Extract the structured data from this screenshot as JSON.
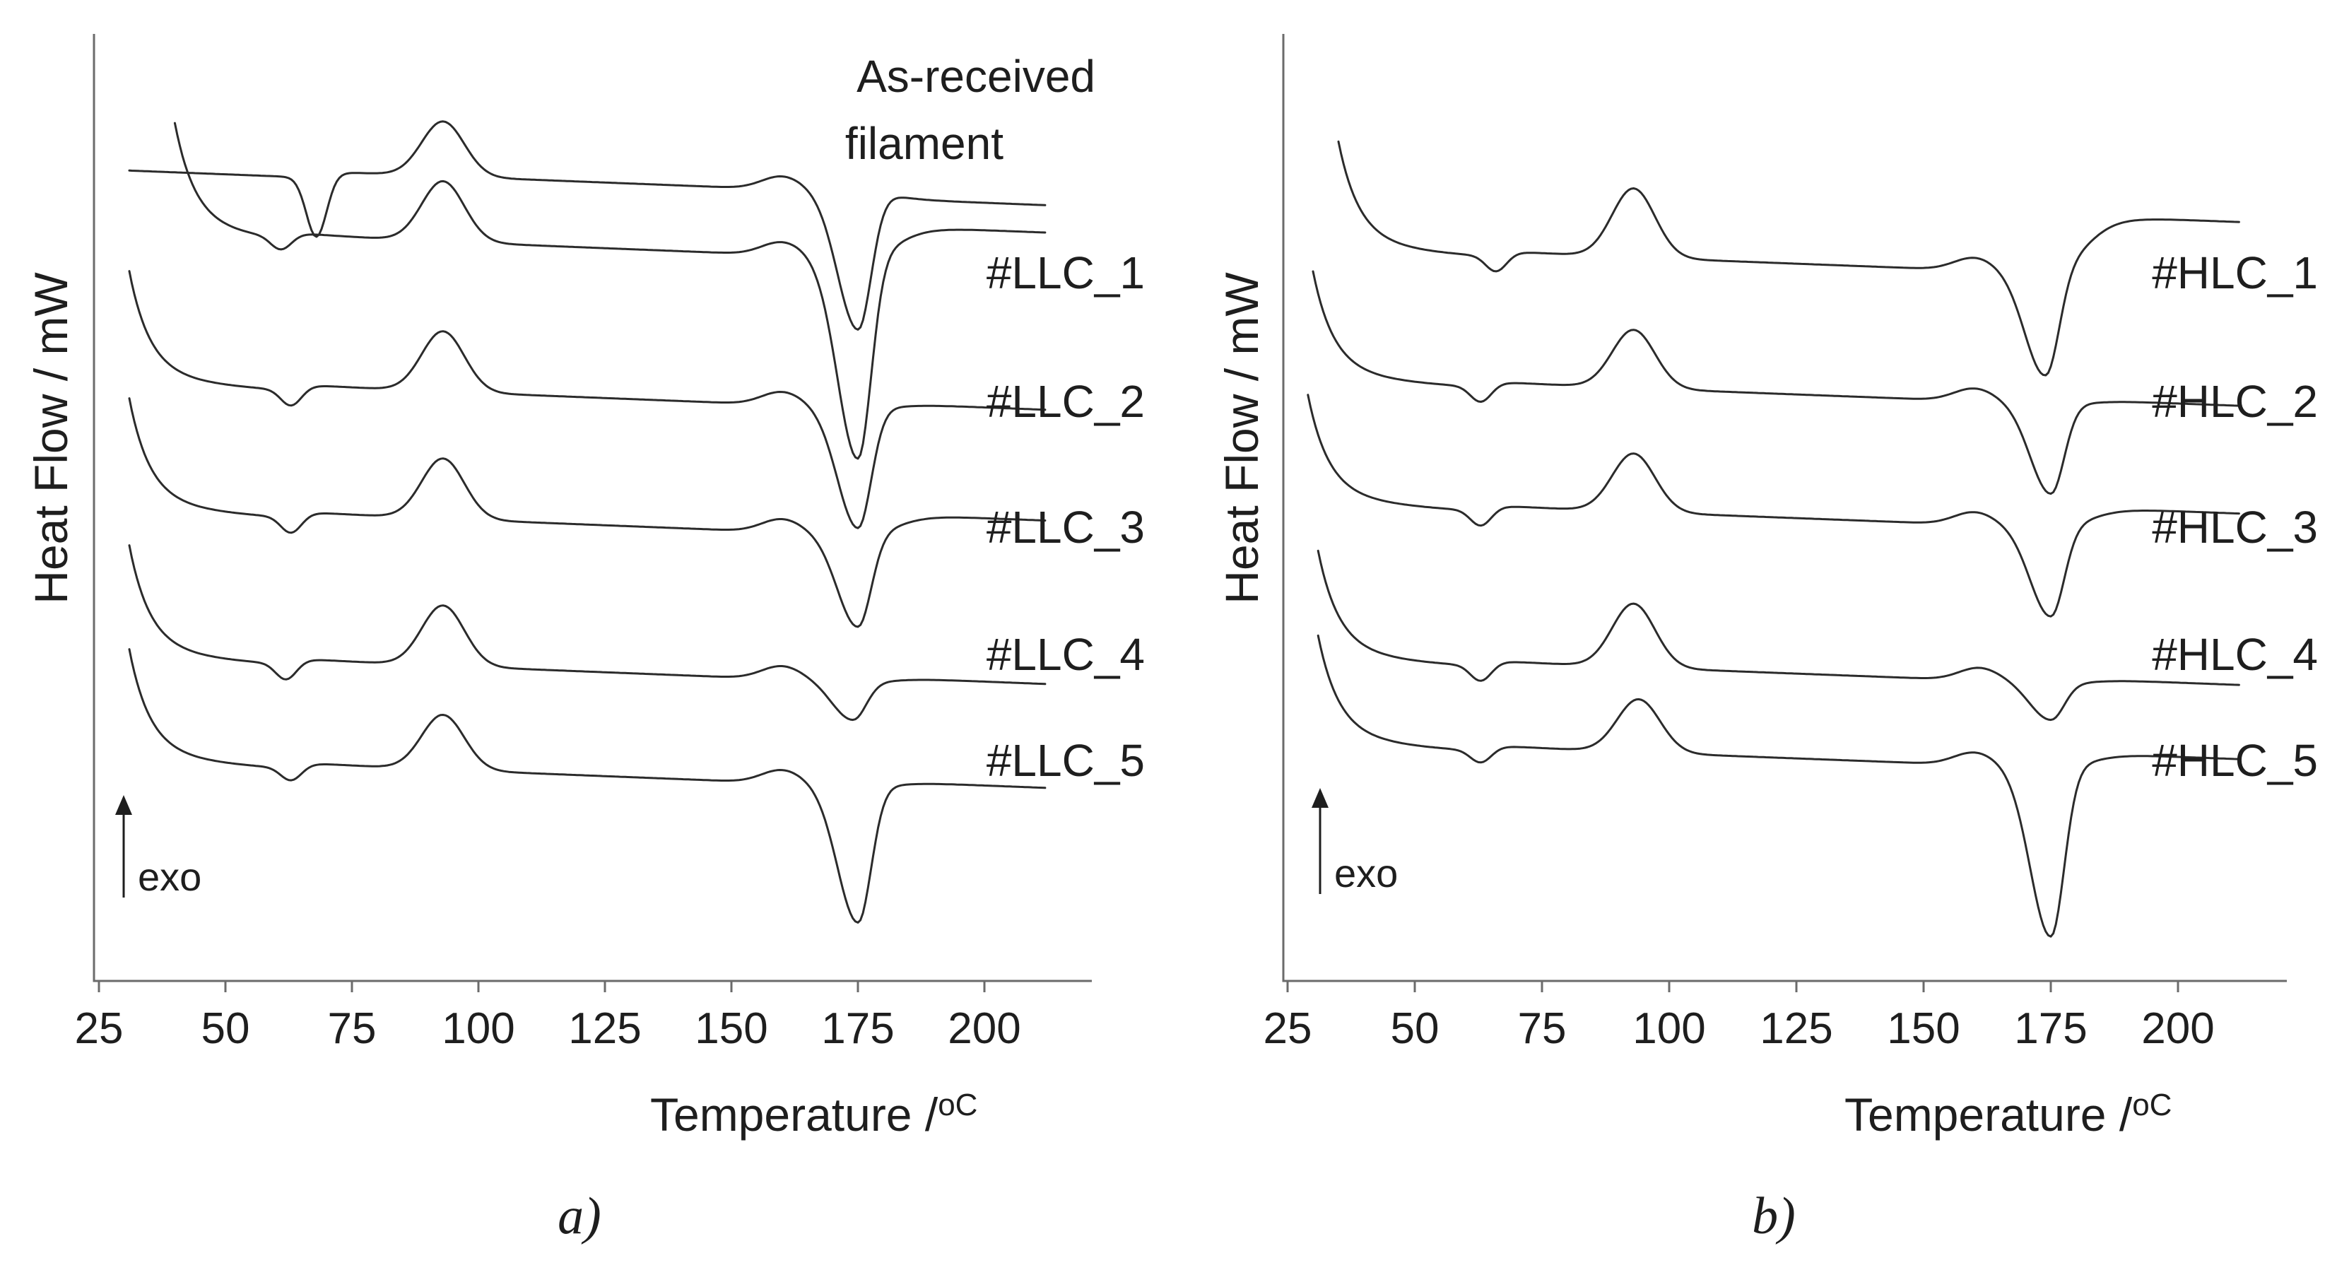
{
  "chart_data": [
    {
      "panel": "a)",
      "type": "line",
      "xlabel": "Temperature /",
      "xlabel_unit": "oC",
      "ylabel": "Heat Flow / mW",
      "xlim": [
        25,
        220
      ],
      "xticks": [
        25,
        50,
        75,
        100,
        125,
        150,
        175,
        200
      ],
      "annotation": "exo",
      "series_color": "#2b2b2b",
      "highlight_color": "#1a9ed8",
      "series": [
        {
          "name": "As-received filament",
          "color": "#1a9ed8",
          "x_start": 31,
          "x_end": 212,
          "baseline": 0.0,
          "offset": 0,
          "features": {
            "steep_start": false,
            "glass_dip_T": 68,
            "glass_dip_depth": 0.55,
            "cold_cryst_T": 93,
            "cold_cryst_height": 0.5,
            "pre_melt_T": 160,
            "melt_T": 175,
            "melt_depth": 1.25,
            "end_level": -0.05
          }
        },
        {
          "name": "#LLC_1",
          "x_start": 40,
          "x_end": 212,
          "offset": 1,
          "features": {
            "steep_start": true,
            "glass_dip_T": 61,
            "glass_dip_depth": 0.12,
            "cold_cryst_T": 93,
            "cold_cryst_height": 0.55,
            "pre_melt_T": 160,
            "melt_T": 175,
            "melt_depth": 1.85,
            "end_level": 0.3
          }
        },
        {
          "name": "#LLC_2",
          "x_start": 31,
          "x_end": 212,
          "offset": 2,
          "features": {
            "steep_start": true,
            "glass_dip_T": 63,
            "glass_dip_depth": 0.15,
            "cold_cryst_T": 93,
            "cold_cryst_height": 0.55,
            "pre_melt_T": 160,
            "melt_T": 175,
            "melt_depth": 1.1,
            "end_level": 0.05
          }
        },
        {
          "name": "#LLC_3",
          "x_start": 31,
          "x_end": 212,
          "offset": 3,
          "features": {
            "steep_start": true,
            "glass_dip_T": 63,
            "glass_dip_depth": 0.15,
            "cold_cryst_T": 93,
            "cold_cryst_height": 0.55,
            "pre_melt_T": 160,
            "melt_T": 175,
            "melt_depth": 0.85,
            "end_level": 0.2
          }
        },
        {
          "name": "#LLC_4",
          "x_start": 31,
          "x_end": 212,
          "offset": 4,
          "features": {
            "steep_start": true,
            "glass_dip_T": 62,
            "glass_dip_depth": 0.15,
            "cold_cryst_T": 93,
            "cold_cryst_height": 0.55,
            "pre_melt_T": 160,
            "melt_T": 174,
            "melt_depth": 0.35,
            "end_level": 0.05
          }
        },
        {
          "name": "#LLC_5",
          "x_start": 31,
          "x_end": 212,
          "offset": 5,
          "features": {
            "steep_start": true,
            "glass_dip_T": 63,
            "glass_dip_depth": 0.12,
            "cold_cryst_T": 93,
            "cold_cryst_height": 0.5,
            "pre_melt_T": 160,
            "melt_T": 175,
            "melt_depth": 1.25,
            "end_level": 0.05
          }
        }
      ]
    },
    {
      "panel": "b)",
      "type": "line",
      "xlabel": "Temperature /",
      "xlabel_unit": "oC",
      "ylabel": "Heat Flow / mW",
      "xlim": [
        25,
        220
      ],
      "xticks": [
        25,
        50,
        75,
        100,
        125,
        150,
        175,
        200
      ],
      "annotation": "exo",
      "series_color": "#2b2b2b",
      "series": [
        {
          "name": "#HLC_1",
          "x_start": 35,
          "x_end": 212,
          "offset": 1,
          "features": {
            "steep_start": true,
            "glass_dip_T": 66,
            "glass_dip_depth": 0.15,
            "cold_cryst_T": 93,
            "cold_cryst_height": 0.65,
            "pre_melt_T": 160,
            "melt_T": 174,
            "melt_depth": 1.0,
            "end_level": 0.55
          }
        },
        {
          "name": "#HLC_2",
          "x_start": 30,
          "x_end": 212,
          "offset": 2,
          "features": {
            "steep_start": true,
            "glass_dip_T": 63,
            "glass_dip_depth": 0.15,
            "cold_cryst_T": 93,
            "cold_cryst_height": 0.55,
            "pre_melt_T": 160,
            "melt_T": 175,
            "melt_depth": 0.85,
            "end_level": 0.05
          }
        },
        {
          "name": "#HLC_3",
          "x_start": 29,
          "x_end": 212,
          "offset": 3,
          "features": {
            "steep_start": true,
            "glass_dip_T": 63,
            "glass_dip_depth": 0.15,
            "cold_cryst_T": 93,
            "cold_cryst_height": 0.55,
            "pre_melt_T": 160,
            "melt_T": 175,
            "melt_depth": 0.85,
            "end_level": 0.2
          }
        },
        {
          "name": "#HLC_4",
          "x_start": 31,
          "x_end": 212,
          "offset": 4,
          "features": {
            "steep_start": true,
            "glass_dip_T": 63,
            "glass_dip_depth": 0.15,
            "cold_cryst_T": 93,
            "cold_cryst_height": 0.6,
            "pre_melt_T": 161,
            "melt_T": 175,
            "melt_depth": 0.35,
            "end_level": 0.05
          }
        },
        {
          "name": "#HLC_5",
          "x_start": 31,
          "x_end": 212,
          "offset": 5,
          "features": {
            "steep_start": true,
            "glass_dip_T": 63,
            "glass_dip_depth": 0.12,
            "cold_cryst_T": 94,
            "cold_cryst_height": 0.5,
            "pre_melt_T": 160,
            "melt_T": 175,
            "melt_depth": 1.6,
            "end_level": 0.15
          }
        }
      ]
    }
  ]
}
